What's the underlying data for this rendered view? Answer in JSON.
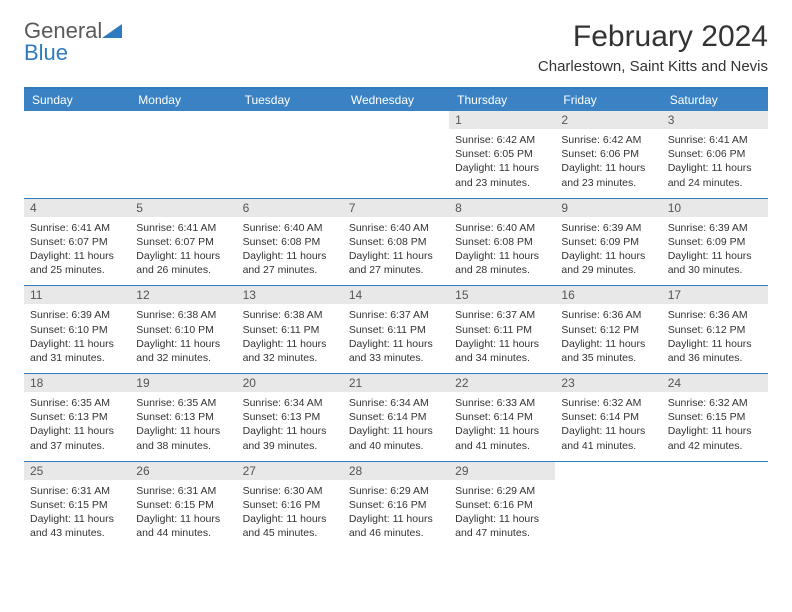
{
  "logo": {
    "text1": "General",
    "text2": "Blue"
  },
  "title": "February 2024",
  "subtitle": "Charlestown, Saint Kitts and Nevis",
  "calendar": {
    "header_bg": "#3a82c4",
    "border_color": "#2f7bbf",
    "daynum_bg": "#e8e8e8",
    "text_color": "#333333",
    "day_headers": [
      "Sunday",
      "Monday",
      "Tuesday",
      "Wednesday",
      "Thursday",
      "Friday",
      "Saturday"
    ],
    "weeks": [
      [
        {
          "empty": true
        },
        {
          "empty": true
        },
        {
          "empty": true
        },
        {
          "empty": true
        },
        {
          "day": "1",
          "sunrise": "Sunrise: 6:42 AM",
          "sunset": "Sunset: 6:05 PM",
          "daylight": "Daylight: 11 hours and 23 minutes."
        },
        {
          "day": "2",
          "sunrise": "Sunrise: 6:42 AM",
          "sunset": "Sunset: 6:06 PM",
          "daylight": "Daylight: 11 hours and 23 minutes."
        },
        {
          "day": "3",
          "sunrise": "Sunrise: 6:41 AM",
          "sunset": "Sunset: 6:06 PM",
          "daylight": "Daylight: 11 hours and 24 minutes."
        }
      ],
      [
        {
          "day": "4",
          "sunrise": "Sunrise: 6:41 AM",
          "sunset": "Sunset: 6:07 PM",
          "daylight": "Daylight: 11 hours and 25 minutes."
        },
        {
          "day": "5",
          "sunrise": "Sunrise: 6:41 AM",
          "sunset": "Sunset: 6:07 PM",
          "daylight": "Daylight: 11 hours and 26 minutes."
        },
        {
          "day": "6",
          "sunrise": "Sunrise: 6:40 AM",
          "sunset": "Sunset: 6:08 PM",
          "daylight": "Daylight: 11 hours and 27 minutes."
        },
        {
          "day": "7",
          "sunrise": "Sunrise: 6:40 AM",
          "sunset": "Sunset: 6:08 PM",
          "daylight": "Daylight: 11 hours and 27 minutes."
        },
        {
          "day": "8",
          "sunrise": "Sunrise: 6:40 AM",
          "sunset": "Sunset: 6:08 PM",
          "daylight": "Daylight: 11 hours and 28 minutes."
        },
        {
          "day": "9",
          "sunrise": "Sunrise: 6:39 AM",
          "sunset": "Sunset: 6:09 PM",
          "daylight": "Daylight: 11 hours and 29 minutes."
        },
        {
          "day": "10",
          "sunrise": "Sunrise: 6:39 AM",
          "sunset": "Sunset: 6:09 PM",
          "daylight": "Daylight: 11 hours and 30 minutes."
        }
      ],
      [
        {
          "day": "11",
          "sunrise": "Sunrise: 6:39 AM",
          "sunset": "Sunset: 6:10 PM",
          "daylight": "Daylight: 11 hours and 31 minutes."
        },
        {
          "day": "12",
          "sunrise": "Sunrise: 6:38 AM",
          "sunset": "Sunset: 6:10 PM",
          "daylight": "Daylight: 11 hours and 32 minutes."
        },
        {
          "day": "13",
          "sunrise": "Sunrise: 6:38 AM",
          "sunset": "Sunset: 6:11 PM",
          "daylight": "Daylight: 11 hours and 32 minutes."
        },
        {
          "day": "14",
          "sunrise": "Sunrise: 6:37 AM",
          "sunset": "Sunset: 6:11 PM",
          "daylight": "Daylight: 11 hours and 33 minutes."
        },
        {
          "day": "15",
          "sunrise": "Sunrise: 6:37 AM",
          "sunset": "Sunset: 6:11 PM",
          "daylight": "Daylight: 11 hours and 34 minutes."
        },
        {
          "day": "16",
          "sunrise": "Sunrise: 6:36 AM",
          "sunset": "Sunset: 6:12 PM",
          "daylight": "Daylight: 11 hours and 35 minutes."
        },
        {
          "day": "17",
          "sunrise": "Sunrise: 6:36 AM",
          "sunset": "Sunset: 6:12 PM",
          "daylight": "Daylight: 11 hours and 36 minutes."
        }
      ],
      [
        {
          "day": "18",
          "sunrise": "Sunrise: 6:35 AM",
          "sunset": "Sunset: 6:13 PM",
          "daylight": "Daylight: 11 hours and 37 minutes."
        },
        {
          "day": "19",
          "sunrise": "Sunrise: 6:35 AM",
          "sunset": "Sunset: 6:13 PM",
          "daylight": "Daylight: 11 hours and 38 minutes."
        },
        {
          "day": "20",
          "sunrise": "Sunrise: 6:34 AM",
          "sunset": "Sunset: 6:13 PM",
          "daylight": "Daylight: 11 hours and 39 minutes."
        },
        {
          "day": "21",
          "sunrise": "Sunrise: 6:34 AM",
          "sunset": "Sunset: 6:14 PM",
          "daylight": "Daylight: 11 hours and 40 minutes."
        },
        {
          "day": "22",
          "sunrise": "Sunrise: 6:33 AM",
          "sunset": "Sunset: 6:14 PM",
          "daylight": "Daylight: 11 hours and 41 minutes."
        },
        {
          "day": "23",
          "sunrise": "Sunrise: 6:32 AM",
          "sunset": "Sunset: 6:14 PM",
          "daylight": "Daylight: 11 hours and 41 minutes."
        },
        {
          "day": "24",
          "sunrise": "Sunrise: 6:32 AM",
          "sunset": "Sunset: 6:15 PM",
          "daylight": "Daylight: 11 hours and 42 minutes."
        }
      ],
      [
        {
          "day": "25",
          "sunrise": "Sunrise: 6:31 AM",
          "sunset": "Sunset: 6:15 PM",
          "daylight": "Daylight: 11 hours and 43 minutes."
        },
        {
          "day": "26",
          "sunrise": "Sunrise: 6:31 AM",
          "sunset": "Sunset: 6:15 PM",
          "daylight": "Daylight: 11 hours and 44 minutes."
        },
        {
          "day": "27",
          "sunrise": "Sunrise: 6:30 AM",
          "sunset": "Sunset: 6:16 PM",
          "daylight": "Daylight: 11 hours and 45 minutes."
        },
        {
          "day": "28",
          "sunrise": "Sunrise: 6:29 AM",
          "sunset": "Sunset: 6:16 PM",
          "daylight": "Daylight: 11 hours and 46 minutes."
        },
        {
          "day": "29",
          "sunrise": "Sunrise: 6:29 AM",
          "sunset": "Sunset: 6:16 PM",
          "daylight": "Daylight: 11 hours and 47 minutes."
        },
        {
          "empty": true
        },
        {
          "empty": true
        }
      ]
    ]
  }
}
